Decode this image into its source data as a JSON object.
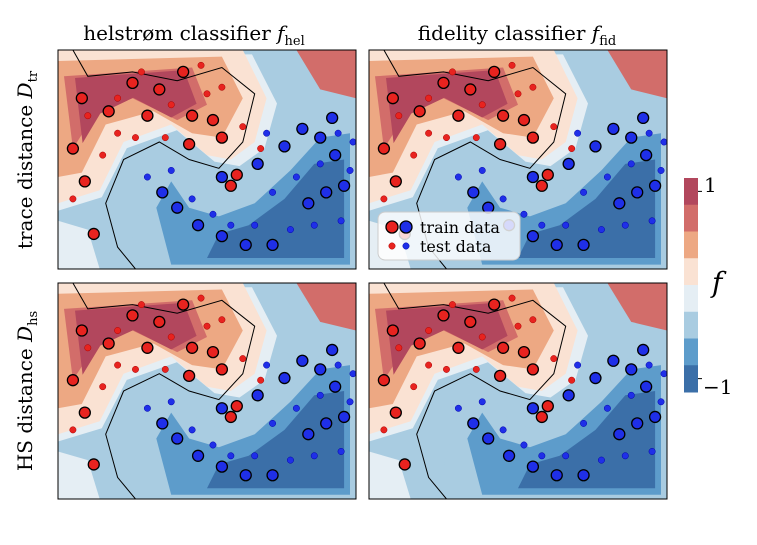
{
  "chart_data": {
    "type": "contour",
    "colorbar": {
      "label": "f",
      "min": -1,
      "max": 1,
      "tick_labels": [
        "1",
        "−1"
      ],
      "levels": [
        "#b2475d",
        "#d26d6a",
        "#eda883",
        "#fae2d3",
        "#e5eef4",
        "#a9cce1",
        "#5d9ccb",
        "#3b6fa8"
      ]
    },
    "columns": [
      {
        "title": "helstrøm classifier",
        "symbol": "f",
        "subscript": "hel"
      },
      {
        "title": "fidelity classifier",
        "symbol": "f",
        "subscript": "fid"
      }
    ],
    "rows": [
      {
        "title": "trace distance",
        "symbol": "D",
        "subscript": "tr"
      },
      {
        "title": "HS distance",
        "symbol": "D",
        "subscript": "hs"
      }
    ],
    "legend": {
      "entries": [
        "train data",
        "test data"
      ],
      "location": "lower-left of top-right panel"
    },
    "train_red": [
      [
        0.08,
        0.78
      ],
      [
        0.17,
        0.72
      ],
      [
        0.25,
        0.85
      ],
      [
        0.34,
        0.82
      ],
      [
        0.42,
        0.9
      ],
      [
        0.45,
        0.7
      ],
      [
        0.52,
        0.68
      ],
      [
        0.55,
        0.6
      ],
      [
        0.44,
        0.57
      ],
      [
        0.6,
        0.43
      ],
      [
        0.05,
        0.55
      ],
      [
        0.09,
        0.4
      ],
      [
        0.12,
        0.16
      ],
      [
        0.58,
        0.38
      ],
      [
        0.3,
        0.7
      ]
    ],
    "train_blue": [
      [
        0.35,
        0.35
      ],
      [
        0.4,
        0.28
      ],
      [
        0.47,
        0.2
      ],
      [
        0.55,
        0.15
      ],
      [
        0.63,
        0.11
      ],
      [
        0.72,
        0.11
      ],
      [
        0.84,
        0.3
      ],
      [
        0.9,
        0.35
      ],
      [
        0.96,
        0.38
      ],
      [
        0.93,
        0.52
      ],
      [
        0.88,
        0.6
      ],
      [
        0.55,
        0.42
      ],
      [
        0.67,
        0.48
      ],
      [
        0.76,
        0.56
      ],
      [
        0.82,
        0.64
      ],
      [
        0.92,
        0.69
      ]
    ],
    "test_red": [
      [
        0.1,
        0.7
      ],
      [
        0.2,
        0.78
      ],
      [
        0.28,
        0.9
      ],
      [
        0.38,
        0.75
      ],
      [
        0.5,
        0.8
      ],
      [
        0.55,
        0.83
      ],
      [
        0.62,
        0.65
      ],
      [
        0.68,
        0.55
      ],
      [
        0.15,
        0.52
      ],
      [
        0.2,
        0.62
      ],
      [
        0.05,
        0.32
      ],
      [
        0.26,
        0.6
      ],
      [
        0.36,
        0.6
      ],
      [
        0.48,
        0.93
      ]
    ],
    "test_blue": [
      [
        0.3,
        0.42
      ],
      [
        0.38,
        0.45
      ],
      [
        0.45,
        0.32
      ],
      [
        0.52,
        0.25
      ],
      [
        0.58,
        0.2
      ],
      [
        0.66,
        0.2
      ],
      [
        0.78,
        0.18
      ],
      [
        0.86,
        0.2
      ],
      [
        0.95,
        0.22
      ],
      [
        0.98,
        0.45
      ],
      [
        0.99,
        0.58
      ],
      [
        0.72,
        0.35
      ],
      [
        0.8,
        0.42
      ],
      [
        0.88,
        0.48
      ],
      [
        0.94,
        0.62
      ],
      [
        0.7,
        0.62
      ]
    ]
  }
}
